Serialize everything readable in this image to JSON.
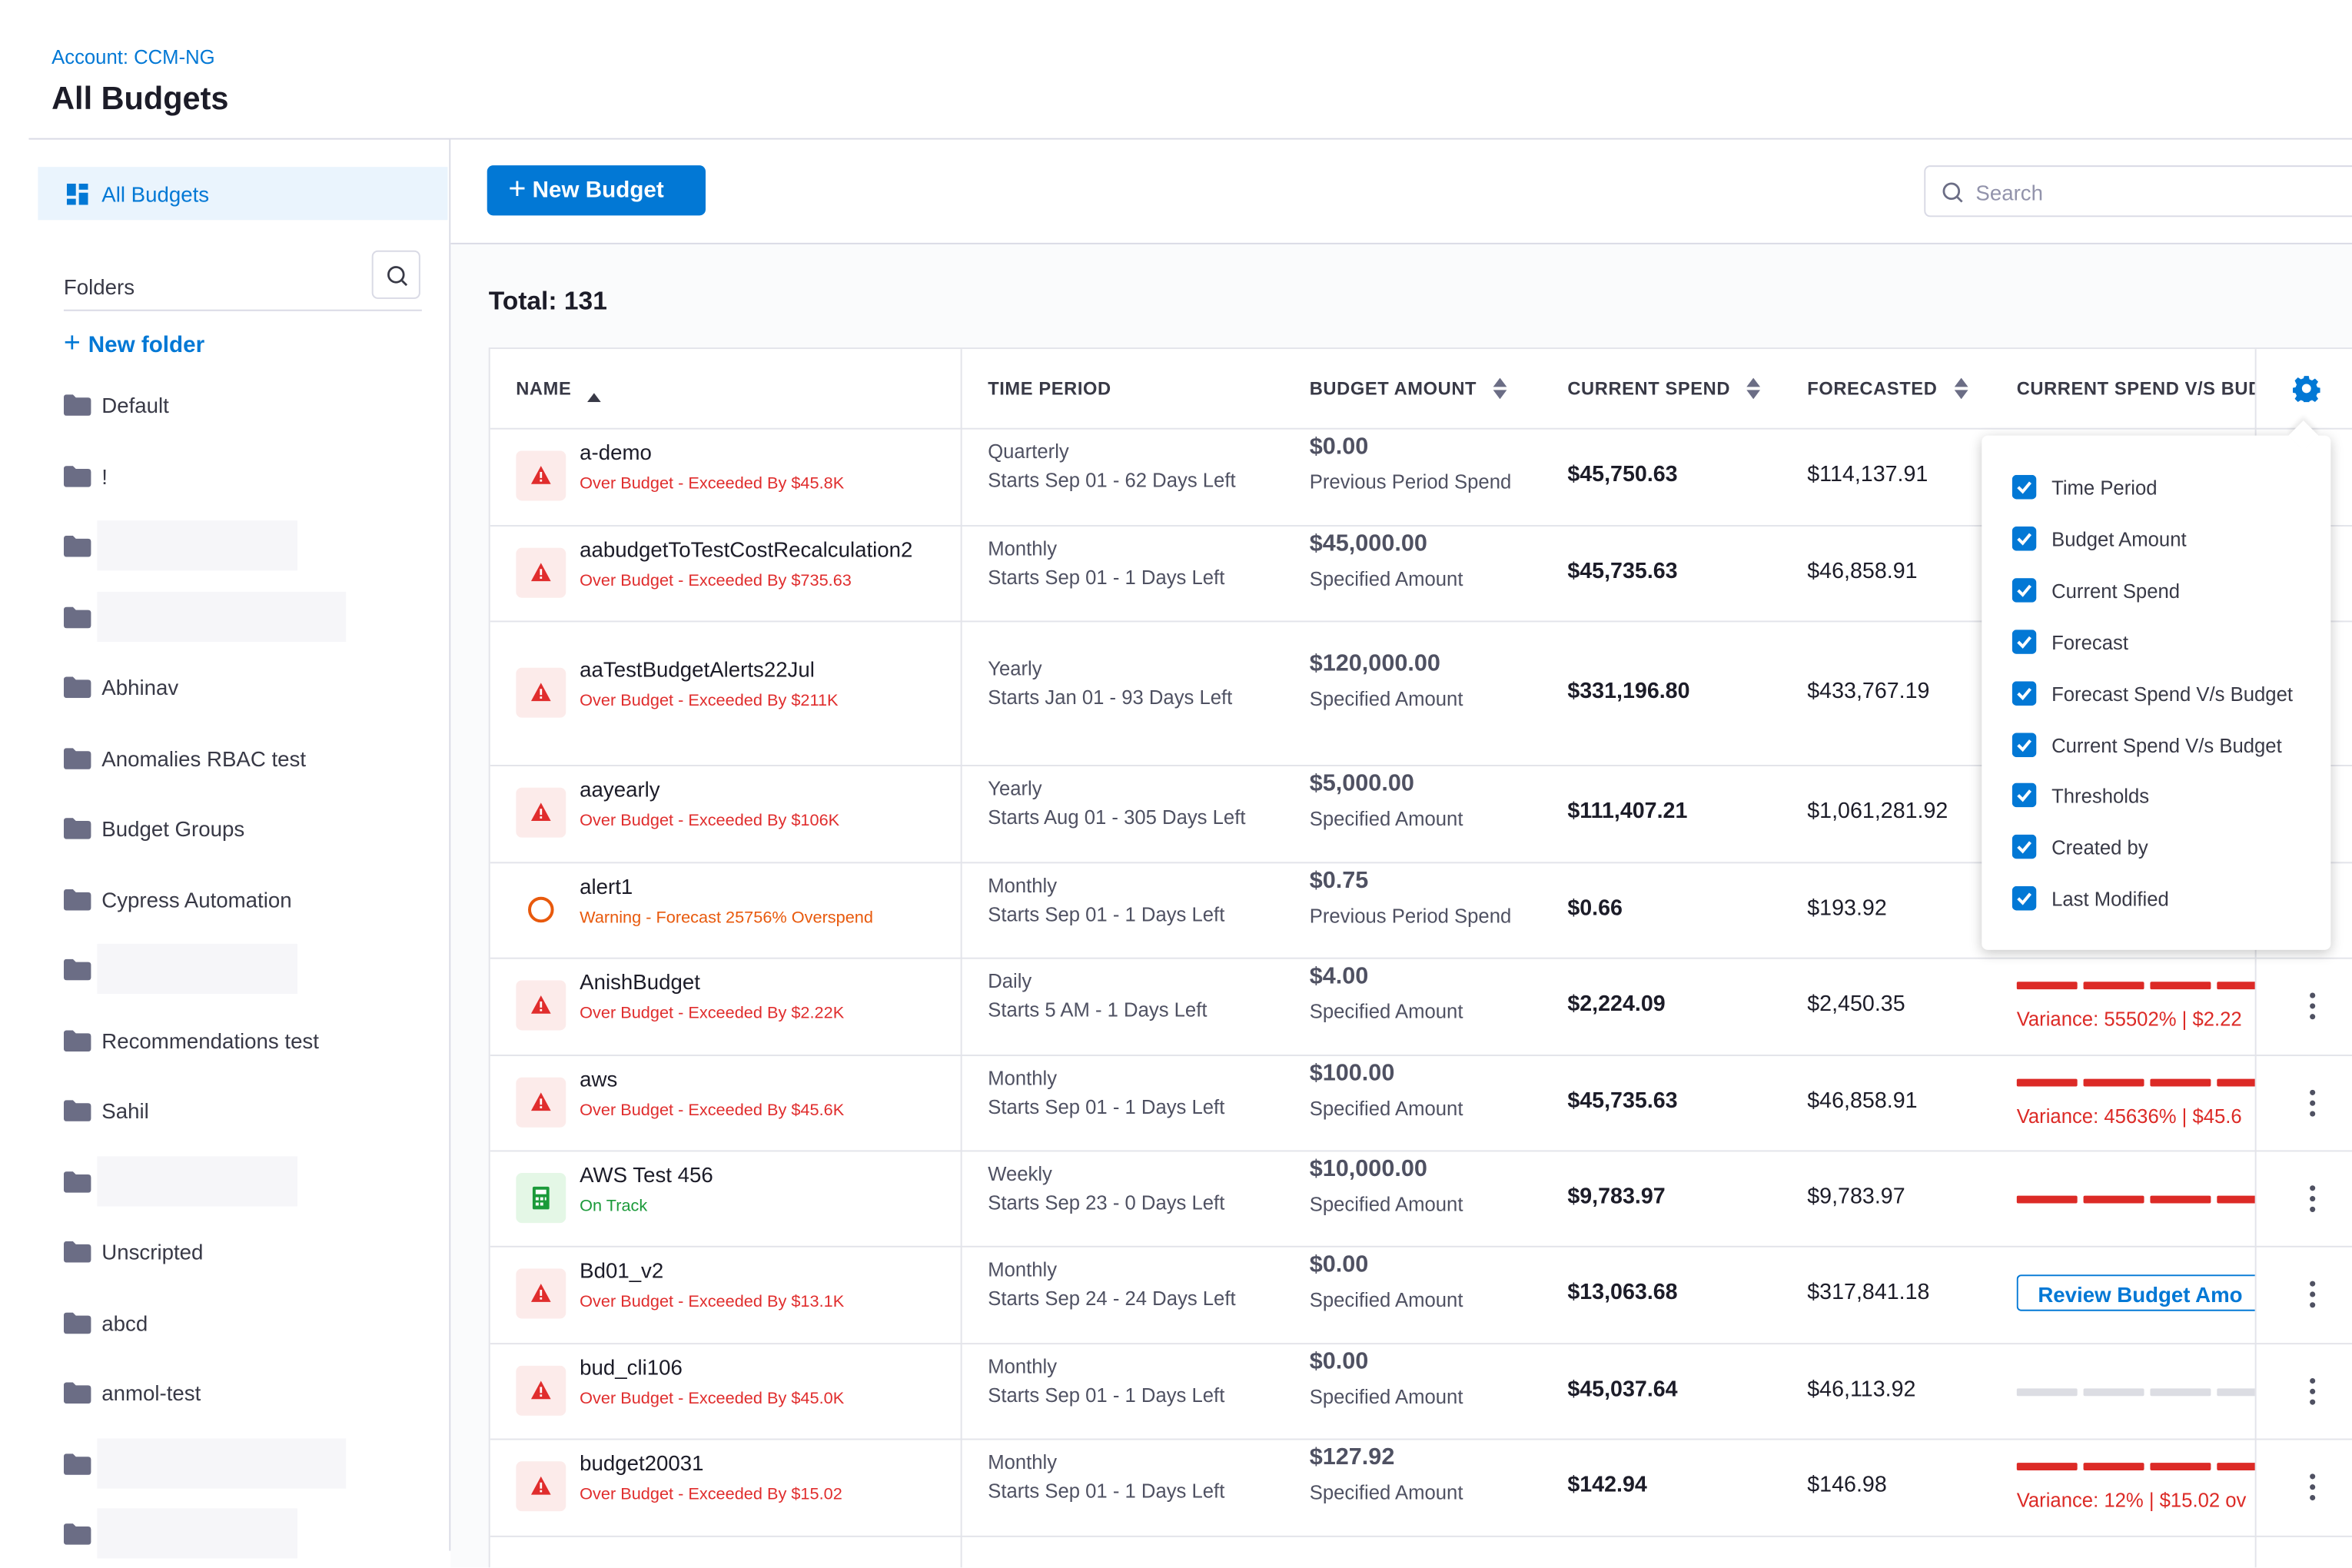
{
  "header": {
    "breadcrumb": "Account: CCM-NG",
    "title": "All Budgets"
  },
  "sidebar": {
    "nav": "All Budgets",
    "folders_label": "Folders",
    "new_folder": "New folder",
    "folders": [
      "Default",
      "!",
      null,
      null,
      "Abhinav",
      "Anomalies RBAC test",
      "Budget Groups",
      "Cypress Automation",
      null,
      "Recommendations test",
      "Sahil",
      null,
      "Unscripted",
      "abcd",
      "anmol-test",
      null,
      null
    ]
  },
  "toolbar": {
    "new_budget": "New Budget",
    "search_placeholder": "Search"
  },
  "total": "Total: 131",
  "table": {
    "columns": [
      "NAME",
      "TIME PERIOD",
      "BUDGET AMOUNT",
      "CURRENT SPEND",
      "FORECASTED",
      "CURRENT SPEND V/S BUDG"
    ],
    "rows": [
      {
        "name": "a-demo",
        "status": "Over Budget - Exceeded By $45.8K",
        "icon": "over-budget",
        "status_color": "#e02d2d",
        "period": "Quarterly",
        "starts": "Starts Sep 01 - 62 Days Left",
        "amount": "$0.00",
        "amount_type": "Previous Period Spend",
        "current": "$45,750.63",
        "forecast": "$114,137.91"
      },
      {
        "name": "aabudgetToTestCostRecalculation2",
        "status": "Over Budget - Exceeded By $735.63",
        "icon": "over-budget",
        "status_color": "#e02d2d",
        "period": "Monthly",
        "starts": "Starts Sep 01 - 1 Days Left",
        "amount": "$45,000.00",
        "amount_type": "Specified Amount",
        "current": "$45,735.63",
        "forecast": "$46,858.91"
      },
      {
        "name": "aaTestBudgetAlerts22Jul",
        "status": "Over Budget - Exceeded By $211K",
        "icon": "over-budget",
        "status_color": "#e02d2d",
        "period": "Yearly",
        "starts": "Starts Jan 01 - 93 Days Left",
        "amount": "$120,000.00",
        "amount_type": "Specified Amount",
        "current": "$331,196.80",
        "forecast": "$433,767.19"
      },
      {
        "name": "aayearly",
        "status": "Over Budget - Exceeded By $106K",
        "icon": "over-budget",
        "status_color": "#e02d2d",
        "period": "Yearly",
        "starts": "Starts Aug 01 - 305 Days Left",
        "amount": "$5,000.00",
        "amount_type": "Specified Amount",
        "current": "$111,407.21",
        "forecast": "$1,061,281.92"
      },
      {
        "name": "alert1",
        "status": "Warning - Forecast 25756% Overspend",
        "icon": "warning",
        "status_color": "#e8590c",
        "period": "Monthly",
        "starts": "Starts Sep 01 - 1 Days Left",
        "amount": "$0.75",
        "amount_type": "Previous Period Spend",
        "current": "$0.66",
        "forecast": "$193.92"
      },
      {
        "name": "AnishBudget",
        "status": "Over Budget - Exceeded By $2.22K",
        "icon": "over-budget",
        "status_color": "#e02d2d",
        "period": "Daily",
        "starts": "Starts 5 AM - 1 Days Left",
        "amount": "$4.00",
        "amount_type": "Specified Amount",
        "current": "$2,224.09",
        "forecast": "$2,450.35",
        "bar_color": "#dc2a26",
        "variance": "Variance: 55502% | $2.22"
      },
      {
        "name": "aws",
        "status": "Over Budget - Exceeded By $45.6K",
        "icon": "over-budget",
        "status_color": "#e02d2d",
        "period": "Monthly",
        "starts": "Starts Sep 01 - 1 Days Left",
        "amount": "$100.00",
        "amount_type": "Specified Amount",
        "current": "$45,735.63",
        "forecast": "$46,858.91",
        "bar_color": "#dc2a26",
        "variance": "Variance: 45636% | $45.6"
      },
      {
        "name": "AWS Test 456",
        "status": "On Track",
        "icon": "on-track",
        "status_color": "#1b9a3a",
        "period": "Weekly",
        "starts": "Starts Sep 23 - 0 Days Left",
        "amount": "$10,000.00",
        "amount_type": "Specified Amount",
        "current": "$9,783.97",
        "forecast": "$9,783.97",
        "bar_color": "#dc2a26"
      },
      {
        "name": "Bd01_v2",
        "status": "Over Budget - Exceeded By $13.1K",
        "icon": "over-budget",
        "status_color": "#e02d2d",
        "period": "Monthly",
        "starts": "Starts Sep 24 - 24 Days Left",
        "amount": "$0.00",
        "amount_type": "Specified Amount",
        "current": "$13,063.68",
        "forecast": "$317,841.18",
        "button": "Review Budget Amo"
      },
      {
        "name": "bud_cli106",
        "status": "Over Budget - Exceeded By $45.0K",
        "icon": "over-budget",
        "status_color": "#e02d2d",
        "period": "Monthly",
        "starts": "Starts Sep 01 - 1 Days Left",
        "amount": "$0.00",
        "amount_type": "Specified Amount",
        "current": "$45,037.64",
        "forecast": "$46,113.92",
        "bar_color": "#dcdde3"
      },
      {
        "name": "budget20031",
        "status": "Over Budget - Exceeded By $15.02",
        "icon": "over-budget",
        "status_color": "#e02d2d",
        "period": "Monthly",
        "starts": "Starts Sep 01 - 1 Days Left",
        "amount": "$127.92",
        "amount_type": "Specified Amount",
        "current": "$142.94",
        "forecast": "$146.98",
        "bar_color": "#dc2a26",
        "variance": "Variance: 12% | $15.02 ov"
      }
    ]
  },
  "column_menu": [
    "Time Period",
    "Budget Amount",
    "Current Spend",
    "Forecast",
    "Forecast Spend V/s Budget",
    "Current Spend V/s Budget",
    "Thresholds",
    "Created by",
    "Last Modified"
  ]
}
